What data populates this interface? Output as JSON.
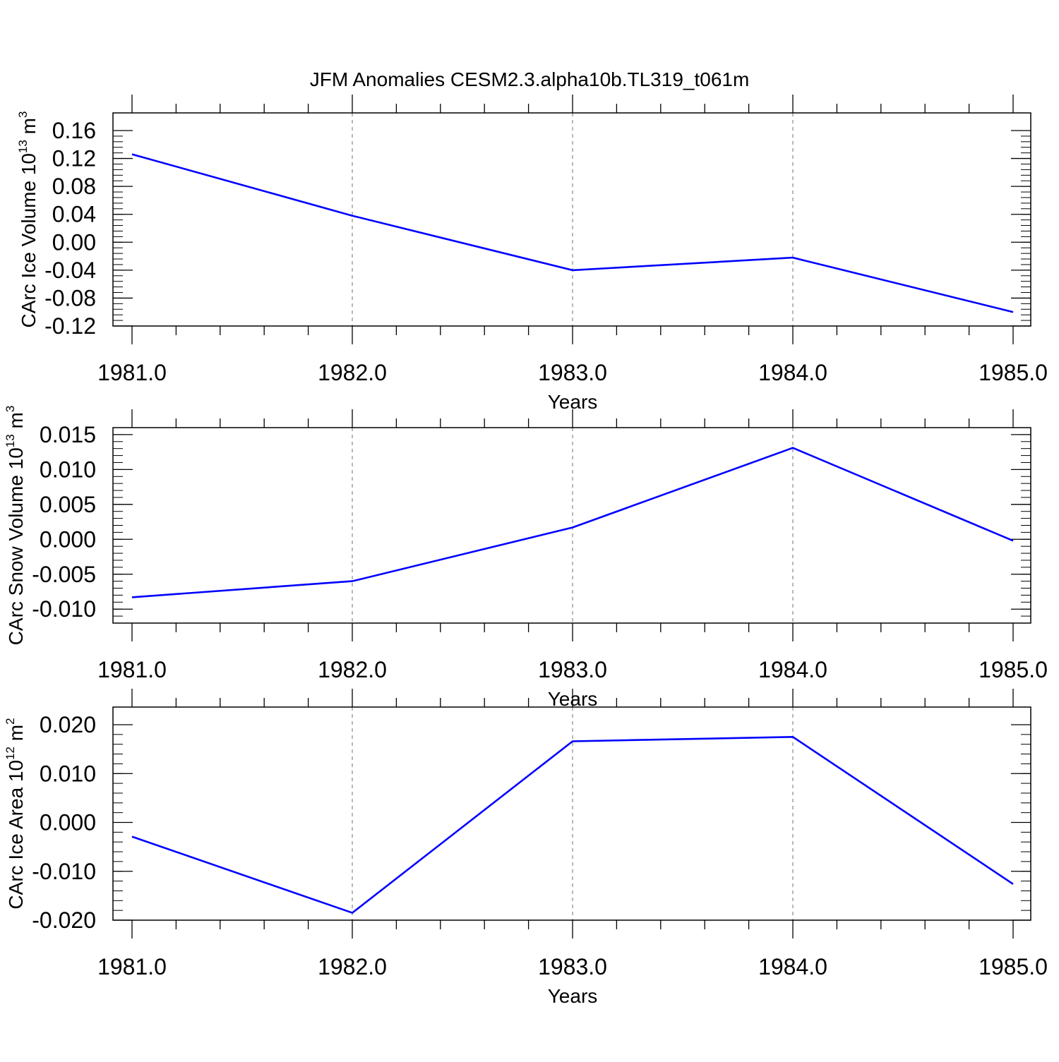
{
  "title": "JFM Anomalies CESM2.3.alpha10b.TL319_t061m",
  "line_color": "#0000ff",
  "chart_data": [
    {
      "type": "line",
      "x": [
        1981.0,
        1982.0,
        1983.0,
        1984.0,
        1985.0
      ],
      "y": [
        0.126,
        0.038,
        -0.04,
        -0.022,
        -0.1
      ],
      "xlabel": "Years",
      "ylabel": {
        "main": "CArc Ice Volume 10",
        "exp": "13",
        "unit": " m",
        "unit_exp": "3"
      },
      "xlim": [
        1981.0,
        1985.0
      ],
      "ylim": [
        -0.12,
        0.16
      ],
      "xticks": [
        "1981.0",
        "1982.0",
        "1983.0",
        "1984.0",
        "1985.0"
      ],
      "yticks": [
        "0.16",
        "0.12",
        "0.08",
        "0.04",
        "0.00",
        "-0.04",
        "-0.08",
        "-0.12"
      ],
      "ytick_values": [
        0.16,
        0.12,
        0.08,
        0.04,
        0.0,
        -0.04,
        -0.08,
        -0.12
      ],
      "grid": "vertical dashed at major x ticks"
    },
    {
      "type": "line",
      "x": [
        1981.0,
        1982.0,
        1983.0,
        1984.0,
        1985.0
      ],
      "y": [
        -0.0083,
        -0.006,
        0.0017,
        0.0131,
        -0.0002
      ],
      "xlabel": "Years",
      "ylabel": {
        "main": "CArc Snow Volume 10",
        "exp": "13",
        "unit": " m",
        "unit_exp": "3"
      },
      "xlim": [
        1981.0,
        1985.0
      ],
      "ylim": [
        -0.012,
        0.016
      ],
      "xticks": [
        "1981.0",
        "1982.0",
        "1983.0",
        "1984.0",
        "1985.0"
      ],
      "yticks": [
        "0.015",
        "0.010",
        "0.005",
        "0.000",
        "-0.005",
        "-0.010"
      ],
      "ytick_values": [
        0.015,
        0.01,
        0.005,
        0.0,
        -0.005,
        -0.01
      ],
      "grid": "vertical dashed at major x ticks"
    },
    {
      "type": "line",
      "x": [
        1981.0,
        1982.0,
        1983.0,
        1984.0,
        1985.0
      ],
      "y": [
        -0.0029,
        -0.0185,
        0.0166,
        0.0175,
        -0.0126
      ],
      "xlabel": "Years",
      "ylabel": {
        "main": "CArc Ice Area 10",
        "exp": "12",
        "unit": " m",
        "unit_exp": "2"
      },
      "xlim": [
        1981.0,
        1985.0
      ],
      "ylim": [
        -0.02,
        0.02
      ],
      "xticks": [
        "1981.0",
        "1982.0",
        "1983.0",
        "1984.0",
        "1985.0"
      ],
      "yticks": [
        "0.020",
        "0.010",
        "0.000",
        "-0.010",
        "-0.020"
      ],
      "ytick_values": [
        0.02,
        0.01,
        0.0,
        -0.01,
        -0.02
      ],
      "grid": "vertical dashed at major x ticks"
    }
  ]
}
